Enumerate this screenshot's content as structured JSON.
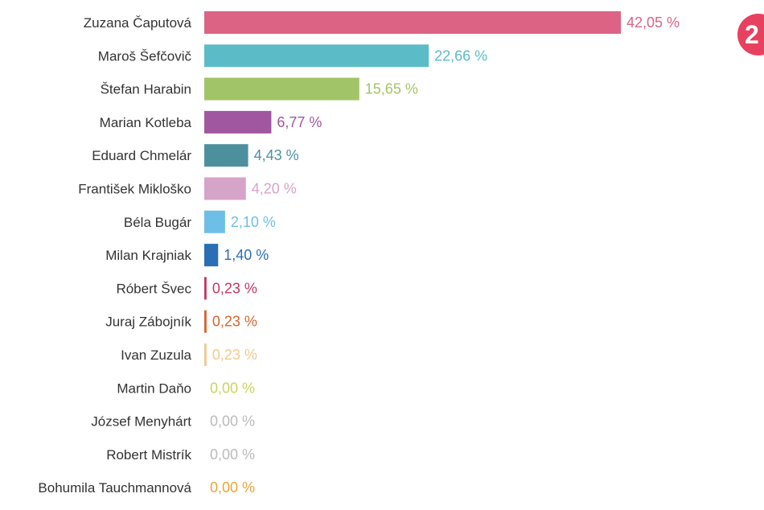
{
  "chart_data": {
    "type": "bar",
    "orientation": "horizontal",
    "categories": [
      "Zuzana Čaputová",
      "Maroš Šefčovič",
      "Štefan Harabin",
      "Marian Kotleba",
      "Eduard Chmelár",
      "František Mikloško",
      "Béla Bugár",
      "Milan Krajniak",
      "Róbert Švec",
      "Juraj Zábojník",
      "Ivan Zuzula",
      "Martin Daňo",
      "József Menyhárt",
      "Robert Mistrík",
      "Bohumila Tauchmannová"
    ],
    "values": [
      42.05,
      22.66,
      15.65,
      6.77,
      4.43,
      4.2,
      2.1,
      1.4,
      0.23,
      0.23,
      0.23,
      0.0,
      0.0,
      0.0,
      0.0
    ],
    "value_labels": [
      "42,05 %",
      "22,66 %",
      "15,65 %",
      "6,77 %",
      "4,43 %",
      "4,20 %",
      "2,10 %",
      "1,40 %",
      "0,23 %",
      "0,23 %",
      "0,23 %",
      "0,00 %",
      "0,00 %",
      "0,00 %",
      "0,00 %"
    ],
    "colors": [
      "#dc6384",
      "#5bbcc7",
      "#a2c468",
      "#a1579f",
      "#4c909e",
      "#d6a3c9",
      "#6dbfe8",
      "#2a6eb5",
      "#c0385e",
      "#d6642e",
      "#f2c98e",
      "#c9d65a",
      "#bbbbbb",
      "#bbbbbb",
      "#f0a336"
    ],
    "xlim": [
      0,
      42.05
    ],
    "title": "",
    "xlabel": "",
    "ylabel": ""
  },
  "badge": {
    "text": "2",
    "color": "#e8415f"
  }
}
